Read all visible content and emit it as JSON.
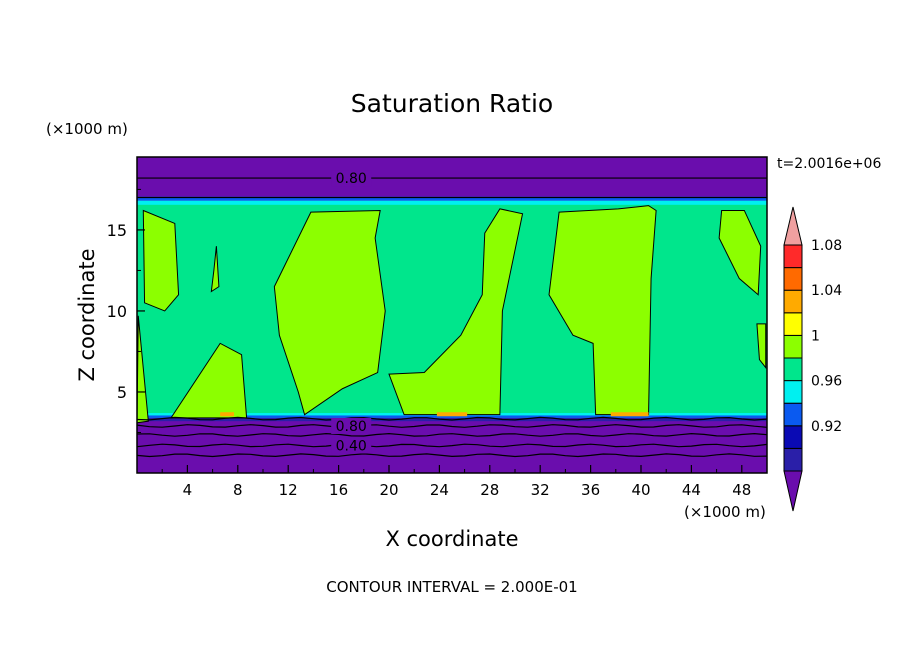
{
  "chart_data": {
    "type": "heatmap",
    "title": "Saturation Ratio",
    "xlabel": "X coordinate",
    "ylabel": "Z coordinate",
    "x_unit": "(×1000 m)",
    "y_unit": "(×1000 m)",
    "time_label": "t=2.0016e+06",
    "footer": "CONTOUR INTERVAL = 2.000E-01",
    "xlim": [
      0,
      50
    ],
    "ylim": [
      0,
      19.5
    ],
    "x_ticks": [
      "4",
      "8",
      "12",
      "16",
      "20",
      "24",
      "28",
      "32",
      "36",
      "40",
      "44",
      "48"
    ],
    "y_ticks": [
      "5",
      "10",
      "15"
    ],
    "contour_labels": [
      {
        "text": "0.80",
        "x": 17,
        "z": 18.2
      },
      {
        "text": "0.80",
        "x": 17,
        "z": 2.9
      },
      {
        "text": "0.40",
        "x": 17,
        "z": 1.7
      }
    ],
    "colorbar": {
      "tick_labels": [
        "0.92",
        "0.96",
        "1",
        "1.04",
        "1.08"
      ],
      "colors": [
        "#6a0dad",
        "#2a1fa8",
        "#0a0ab4",
        "#0a5af0",
        "#00f0f0",
        "#00e68c",
        "#8cff00",
        "#ffff00",
        "#ffaa00",
        "#ff6a00",
        "#ff2a2a",
        "#f0a0a0"
      ]
    },
    "regions": {
      "upper_band": {
        "z_range": [
          16.8,
          19.5
        ],
        "value": 0.8
      },
      "middle_layer": {
        "z_range": [
          3.4,
          16.8
        ],
        "background_value": "0.96-1",
        "moist_value": "1-1.04"
      },
      "lower_band": {
        "z_range": [
          0,
          3.4
        ],
        "value": 0.4
      }
    },
    "moist_plumes": [
      [
        [
          0.5,
          16.2
        ],
        [
          3,
          15.4
        ],
        [
          3.3,
          11
        ],
        [
          2.2,
          10
        ],
        [
          0.6,
          10.5
        ]
      ],
      [
        [
          0.1,
          9.7
        ],
        [
          0.9,
          3.2
        ],
        [
          0,
          3.1
        ]
      ],
      [
        [
          2.7,
          3.4
        ],
        [
          6.6,
          8
        ],
        [
          8.3,
          7.3
        ],
        [
          8.7,
          3.4
        ]
      ],
      [
        [
          6.3,
          14
        ],
        [
          6.5,
          11.5
        ],
        [
          5.9,
          11.2
        ],
        [
          6.1,
          12.5
        ]
      ],
      [
        [
          12.8,
          5
        ],
        [
          11.3,
          8.5
        ],
        [
          10.9,
          11.5
        ],
        [
          13.8,
          16.1
        ],
        [
          19.3,
          16.2
        ],
        [
          18.9,
          14.5
        ],
        [
          19.7,
          10
        ],
        [
          19.1,
          6.2
        ],
        [
          16.3,
          5.2
        ],
        [
          13.3,
          3.6
        ]
      ],
      [
        [
          20,
          6.1
        ],
        [
          22.8,
          6.2
        ],
        [
          25.7,
          8.5
        ],
        [
          27.4,
          11
        ],
        [
          27.6,
          14.8
        ],
        [
          28.8,
          16.3
        ],
        [
          30.6,
          16
        ],
        [
          29,
          10
        ],
        [
          28.8,
          3.6
        ],
        [
          21.2,
          3.6
        ]
      ],
      [
        [
          33.5,
          16.1
        ],
        [
          38.2,
          16.3
        ],
        [
          40.6,
          16.5
        ],
        [
          41.2,
          16.2
        ],
        [
          40.8,
          12
        ],
        [
          40.6,
          3.6
        ],
        [
          36.4,
          3.6
        ],
        [
          36.2,
          8
        ],
        [
          34.6,
          8.5
        ],
        [
          32.7,
          11
        ]
      ],
      [
        [
          46.4,
          16.2
        ],
        [
          48.2,
          16.2
        ],
        [
          49.5,
          14
        ],
        [
          49.3,
          11
        ],
        [
          47.8,
          12
        ],
        [
          46.2,
          14.5
        ]
      ],
      [
        [
          49.2,
          9.2
        ],
        [
          49.9,
          9.2
        ],
        [
          49.9,
          6.5
        ],
        [
          49.4,
          7
        ]
      ]
    ]
  }
}
